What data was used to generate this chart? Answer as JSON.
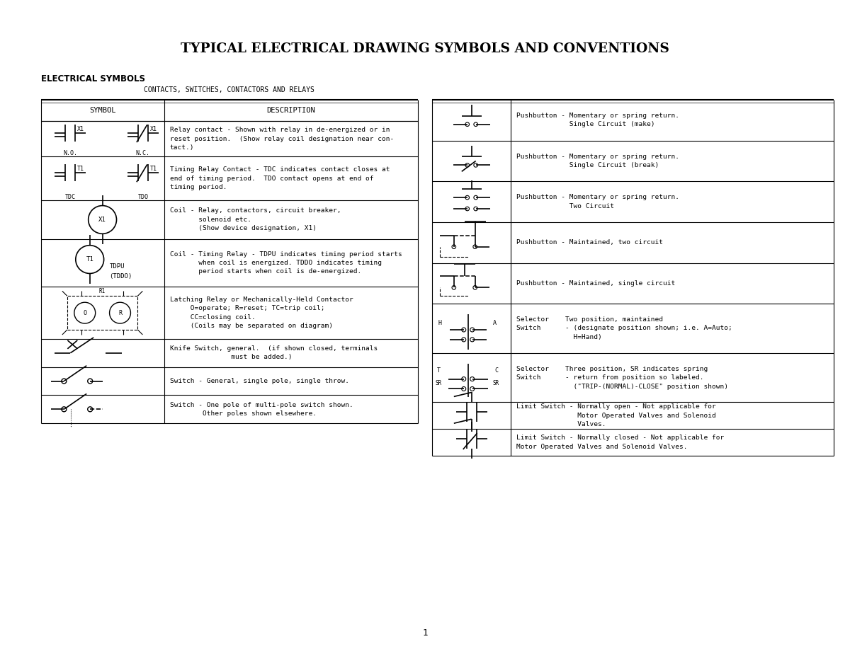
{
  "title": "TYPICAL ELECTRICAL DRAWING SYMBOLS AND CONVENTIONS",
  "subtitle": "ELECTRICAL SYMBOLS",
  "section_title": "CONTACTS, SWITCHES, CONTACTORS AND RELAYS",
  "bg_color": "#ffffff",
  "page_number": "1",
  "left_descs": [
    "Relay contact - Shown with relay in de-energized or in\nreset position.  (Show relay coil designation near con-\ntact.)",
    "Timing Relay Contact - TDC indicates contact closes at\nend of timing period.  TDO contact opens at end of\ntiming period.",
    "Coil - Relay, contactors, circuit breaker,\n       solenoid etc.\n       (Show device designation, X1)",
    "Coil - Timing Relay - TDPU indicates timing period starts\n       when coil is energized. TDDO indicates timing\n       period starts when coil is de-energized.",
    "Latching Relay or Mechanically-Held Contactor\n     O=operate; R=reset; TC=trip coil;\n     CC=closing coil.\n     (Coils may be separated on diagram)",
    "Knife Switch, general.  (if shown closed, terminals\n               must be added.)",
    "Switch - General, single pole, single throw.",
    "Switch - One pole of multi-pole switch shown.\n        Other poles shown elsewhere."
  ],
  "right_descs": [
    "Pushbutton - Momentary or spring return.\n             Single Circuit (make)",
    "Pushbutton - Momentary or spring return.\n             Single Circuit (break)",
    "Pushbutton - Momentary or spring return.\n             Two Circuit",
    "Pushbutton - Maintained, two circuit",
    "Pushbutton - Maintained, single circuit",
    "Selector    Two position, maintained\nSwitch      - (designate position shown; i.e. A=Auto;\n              H=Hand)",
    "Selector    Three position, SR indicates spring\nSwitch      - return from position so labeled.\n              (\"TRIP-(NORMAL)-CLOSE\" position shown)",
    "Limit Switch - Normally open - Not applicable for\n               Motor Operated Valves and Solenoid\n               Valves.",
    "Limit Switch - Normally closed - Not applicable for\nMotor Operated Valves and Solenoid Valves."
  ]
}
